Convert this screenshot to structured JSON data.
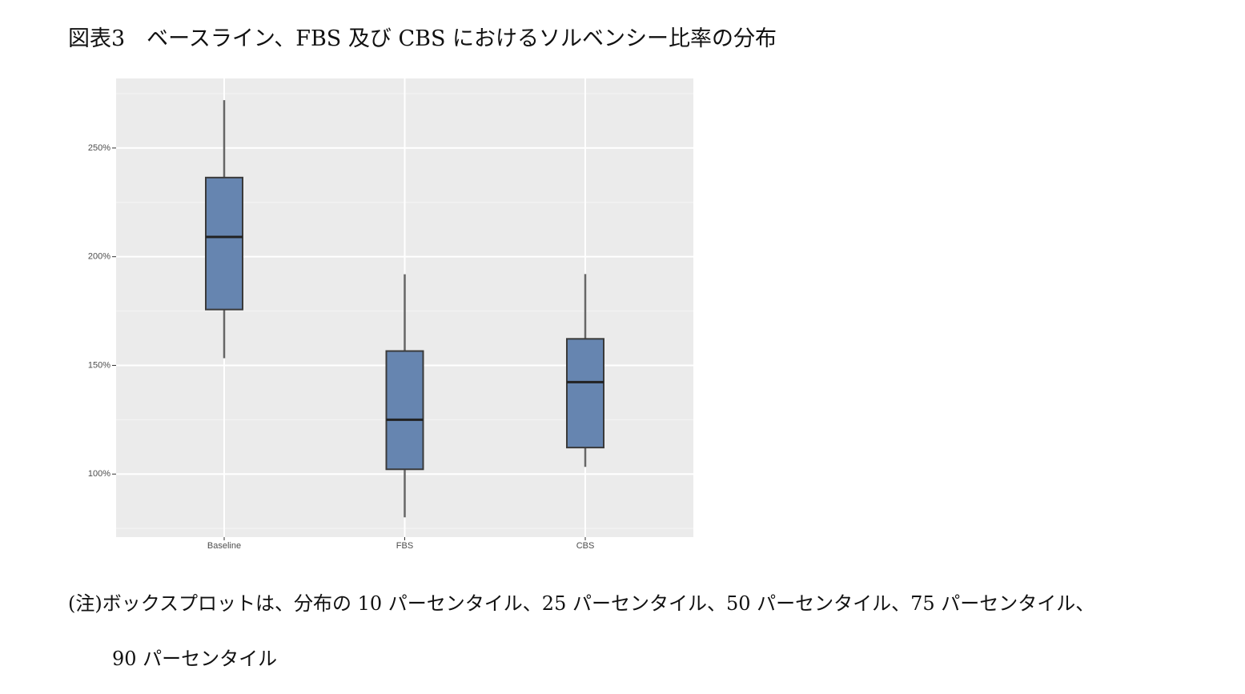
{
  "chart_data": {
    "type": "box",
    "title": "図表3　ベースライン、FBS 及び CBS におけるソルベンシー比率の分布",
    "categories": [
      "Baseline",
      "FBS",
      "CBS"
    ],
    "series": [
      {
        "color": "#6685b0",
        "low": [
          153.3,
          80.1,
          103.3
        ],
        "q1": [
          175.7,
          102.2,
          112.2
        ],
        "median": [
          209.1,
          125,
          142.3
        ],
        "q3": [
          236.4,
          156.6,
          162.2
        ],
        "high": [
          272,
          191.9,
          192
        ]
      }
    ],
    "ylim": [
      71,
      282
    ],
    "yticks": [
      {
        "value": 100,
        "label": "100%"
      },
      {
        "value": 150,
        "label": "150%"
      },
      {
        "value": 200,
        "label": "200%"
      },
      {
        "value": 250,
        "label": "250%"
      }
    ],
    "minor_yticks": [
      75,
      125,
      175,
      225,
      275
    ],
    "grid": true,
    "notes": [
      "(注)ボックスプロットは、分布の 10 パーセンタイル、25 パーセンタイル、50 パーセンタイル、75 パーセンタイル、",
      "90 パーセンタイル"
    ]
  }
}
